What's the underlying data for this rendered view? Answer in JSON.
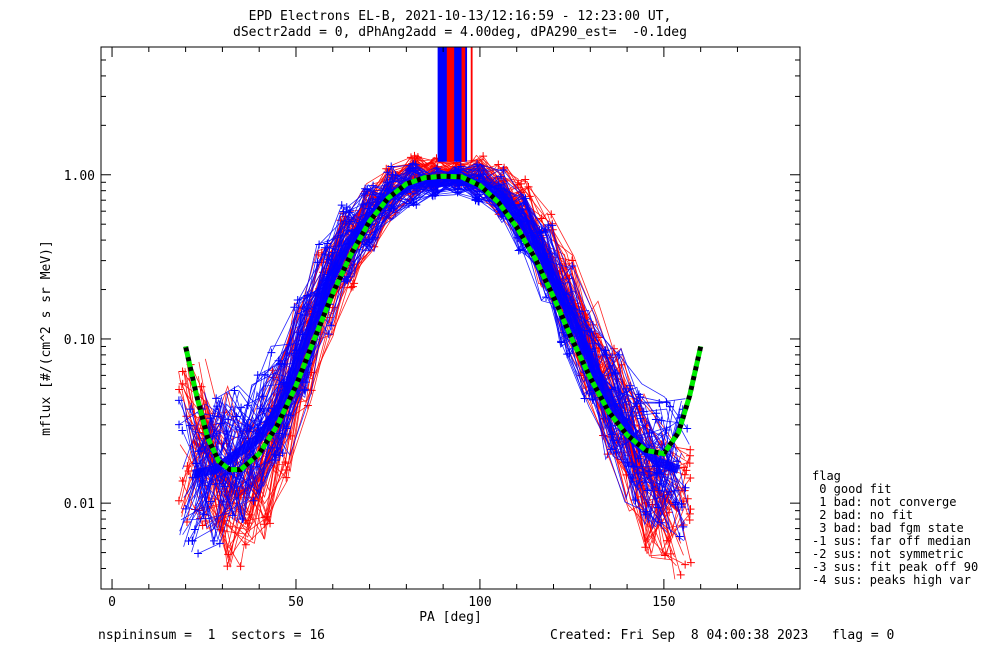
{
  "header": {
    "title_line1": "EPD Electrons EL-B, 2021-10-13/12:16:59 - 12:23:00 UT,",
    "title_line2": "dSectr2add = 0, dPhAng2add = 4.00deg, dPA290_est=  -0.1deg"
  },
  "footer": {
    "left": "nspininsum =  1  sectors = 16",
    "right": "Created: Fri Sep  8 04:00:38 2023   flag = 0"
  },
  "flag_legend": {
    "title": "flag",
    "items": [
      " 0 good fit",
      " 1 bad: not converge",
      " 2 bad: no fit",
      " 3 bad: bad fgm state",
      "-1 sus: far off median",
      "-2 sus: not symmetric",
      "-3 sus: fit peak off 90",
      "-4 sus: peaks high var"
    ]
  },
  "chart_data": {
    "type": "line",
    "xlabel": "PA [deg]",
    "ylabel": "mflux [#/(cm^2 s sr MeV)]",
    "xlim": [
      -3,
      187
    ],
    "ylim": [
      0.003,
      6
    ],
    "yscale": "log",
    "xticks": [
      0,
      50,
      100,
      150
    ],
    "xtick_labels": [
      "0",
      "50",
      "100",
      "150"
    ],
    "yticks": [
      0.01,
      0.1,
      1.0
    ],
    "ytick_labels": [
      "0.01",
      "0.10",
      "1.00"
    ],
    "grid": false,
    "colors": {
      "red": "#ff0000",
      "blue": "#0000ff",
      "fit_green": "#00ee00",
      "fit_black": "#000000"
    },
    "series": [
      {
        "color": "red",
        "values_description_note": "",
        "x": [
          22,
          28,
          34,
          40,
          46,
          52,
          58,
          64,
          70,
          76,
          82,
          88,
          94,
          100,
          106,
          112,
          118,
          124,
          130,
          136,
          142,
          148,
          154
        ],
        "y": [
          0.024,
          0.018,
          0.011,
          0.014,
          0.03,
          0.08,
          0.19,
          0.36,
          0.57,
          0.8,
          0.97,
          1.02,
          0.98,
          0.99,
          0.83,
          0.6,
          0.35,
          0.18,
          0.085,
          0.04,
          0.02,
          0.012,
          0.009
        ]
      },
      {
        "color": "blue",
        "x": [
          22,
          28,
          34,
          40,
          46,
          52,
          58,
          64,
          70,
          76,
          82,
          88,
          94,
          100,
          106,
          112,
          118,
          124,
          130,
          136,
          142,
          148,
          154
        ],
        "y": [
          0.015,
          0.016,
          0.02,
          0.025,
          0.04,
          0.09,
          0.2,
          0.38,
          0.55,
          0.76,
          0.88,
          0.9,
          0.92,
          0.88,
          0.74,
          0.5,
          0.29,
          0.15,
          0.075,
          0.04,
          0.024,
          0.018,
          0.016
        ]
      }
    ],
    "fit_curve": {
      "x": [
        20,
        23,
        26,
        29,
        32,
        35,
        40,
        45,
        50,
        55,
        60,
        65,
        70,
        75,
        80,
        85,
        90,
        95,
        100,
        105,
        110,
        115,
        120,
        125,
        130,
        135,
        140,
        145,
        150,
        154,
        157,
        160
      ],
      "y": [
        0.09,
        0.045,
        0.025,
        0.018,
        0.016,
        0.016,
        0.02,
        0.03,
        0.052,
        0.1,
        0.19,
        0.33,
        0.52,
        0.72,
        0.88,
        0.96,
        0.98,
        0.97,
        0.86,
        0.68,
        0.48,
        0.31,
        0.18,
        0.1,
        0.058,
        0.036,
        0.026,
        0.021,
        0.02,
        0.027,
        0.045,
        0.09
      ]
    }
  }
}
